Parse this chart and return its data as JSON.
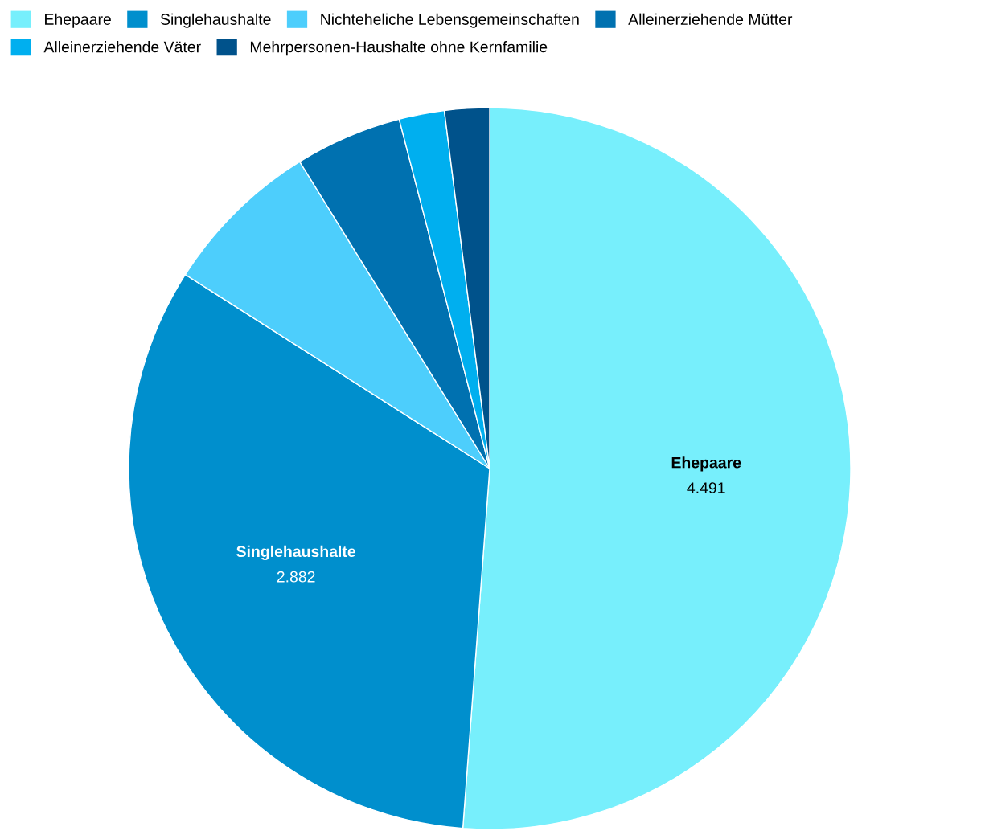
{
  "chart_data": {
    "type": "pie",
    "categories": [
      "Ehepaare",
      "Singlehaushalte",
      "Nichteheliche Lebensgemeinschaften",
      "Alleinerziehende Mütter",
      "Alleinerziehende Väter",
      "Mehrpersonen-Haushalte ohne Kernfamilie"
    ],
    "values": [
      4491,
      2882,
      627,
      420,
      178,
      176
    ],
    "value_labels": [
      "4.491",
      "2.882",
      null,
      null,
      null,
      null
    ],
    "colors": [
      "#77effc",
      "#008fcd",
      "#4dcefc",
      "#0071b0",
      "#00afef",
      "#00528b"
    ],
    "legend": "top left"
  }
}
